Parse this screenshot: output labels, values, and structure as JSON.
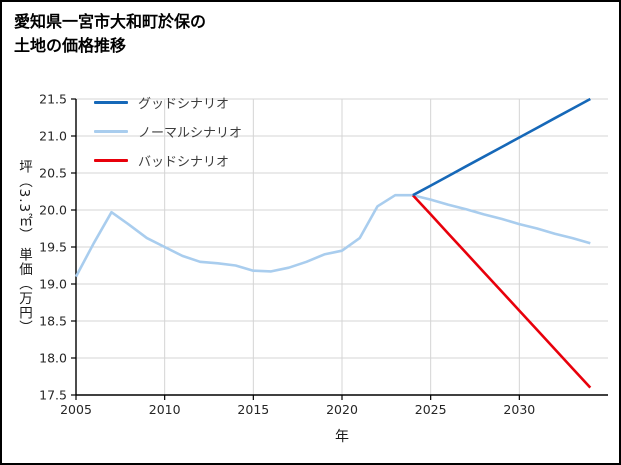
{
  "title": {
    "line1": "愛知県一宮市大和町於保の",
    "line2": "土地の価格推移"
  },
  "chart_data": {
    "type": "line",
    "title": "愛知県一宮市大和町於保の 土地の価格推移",
    "xlabel": "年",
    "ylabel": "坪（3.3㎡） 単価（万円）",
    "xlim": [
      2005,
      2035
    ],
    "ylim": [
      17.5,
      21.5
    ],
    "xticks": [
      2005,
      2010,
      2015,
      2020,
      2025,
      2030
    ],
    "yticks": [
      17.5,
      18.0,
      18.5,
      19.0,
      19.5,
      20.0,
      20.5,
      21.0,
      21.5
    ],
    "ytick_labels": [
      "17.5",
      "18.0",
      "18.5",
      "19.0",
      "19.5",
      "20.0",
      "20.5",
      "21.0",
      "21.5"
    ],
    "grid": true,
    "legend_position": "upper left",
    "grid_color": "#d4d4d4",
    "series": [
      {
        "name": "グッドシナリオ",
        "color": "#1668b8",
        "x": [
          2024,
          2025,
          2026,
          2027,
          2028,
          2029,
          2030,
          2031,
          2032,
          2033,
          2034
        ],
        "values": [
          20.2,
          20.33,
          20.46,
          20.59,
          20.72,
          20.85,
          20.98,
          21.11,
          21.24,
          21.37,
          21.5
        ]
      },
      {
        "name": "ノーマルシナリオ",
        "color": "#a9cdee",
        "x": [
          2005,
          2006,
          2007,
          2008,
          2009,
          2010,
          2011,
          2012,
          2013,
          2014,
          2015,
          2016,
          2017,
          2018,
          2019,
          2020,
          2021,
          2022,
          2023,
          2024,
          2025,
          2026,
          2027,
          2028,
          2029,
          2030,
          2031,
          2032,
          2033,
          2034
        ],
        "values": [
          19.1,
          19.55,
          19.97,
          19.8,
          19.62,
          19.5,
          19.38,
          19.3,
          19.28,
          19.25,
          19.18,
          19.17,
          19.22,
          19.3,
          19.4,
          19.45,
          19.62,
          20.05,
          20.2,
          20.2,
          20.14,
          20.07,
          20.01,
          19.94,
          19.88,
          19.81,
          19.75,
          19.68,
          19.62,
          19.55
        ]
      },
      {
        "name": "バッドシナリオ",
        "color": "#e8000b",
        "x": [
          2024,
          2025,
          2026,
          2027,
          2028,
          2029,
          2030,
          2031,
          2032,
          2033,
          2034
        ],
        "values": [
          20.2,
          19.94,
          19.68,
          19.42,
          19.16,
          18.9,
          18.64,
          18.38,
          18.12,
          17.86,
          17.6
        ]
      }
    ]
  }
}
